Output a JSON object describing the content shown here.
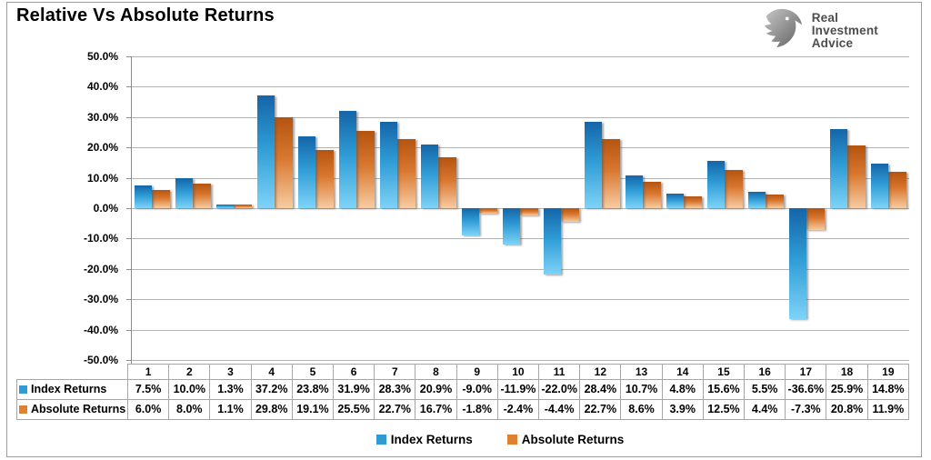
{
  "title": "Relative Vs Absolute Returns",
  "logo": {
    "name": "Real Investment Advice",
    "lines": [
      "Real",
      "Investment",
      "Advice"
    ]
  },
  "chart_data": {
    "type": "bar",
    "title": "Relative Vs Absolute Returns",
    "categories": [
      "1",
      "2",
      "3",
      "4",
      "5",
      "6",
      "7",
      "8",
      "9",
      "10",
      "11",
      "12",
      "13",
      "14",
      "15",
      "16",
      "17",
      "18",
      "19"
    ],
    "series": [
      {
        "name": "Index Returns",
        "color": "#2E9BD5",
        "gradient": [
          "#1565A8",
          "#2E9BD5",
          "#7ED3F7"
        ],
        "values": [
          7.5,
          10.0,
          1.3,
          37.2,
          23.8,
          31.9,
          28.3,
          20.9,
          -9.0,
          -11.9,
          -22.0,
          28.4,
          10.7,
          4.8,
          15.6,
          5.5,
          -36.6,
          25.9,
          14.8
        ]
      },
      {
        "name": "Absolute Returns",
        "color": "#E0812F",
        "gradient": [
          "#B5540F",
          "#D9772F",
          "#F7CCA2"
        ],
        "values": [
          6.0,
          8.0,
          1.1,
          29.8,
          19.1,
          25.5,
          22.7,
          16.7,
          -1.8,
          -2.4,
          -4.4,
          22.7,
          8.6,
          3.9,
          12.5,
          4.4,
          -7.3,
          20.8,
          11.9
        ]
      }
    ],
    "ylim": [
      -50,
      50
    ],
    "ytick_step": 10,
    "ytick_format": "percent_1dp",
    "value_format": "percent_1dp",
    "grid": true,
    "legend_position": "bottom",
    "xlabel": "",
    "ylabel": ""
  },
  "colors": {
    "gridline": "#b3b3b3",
    "axis": "#8c8c8c",
    "table_border": "#a6a6a6",
    "logo_text": "#4d4d4f"
  }
}
